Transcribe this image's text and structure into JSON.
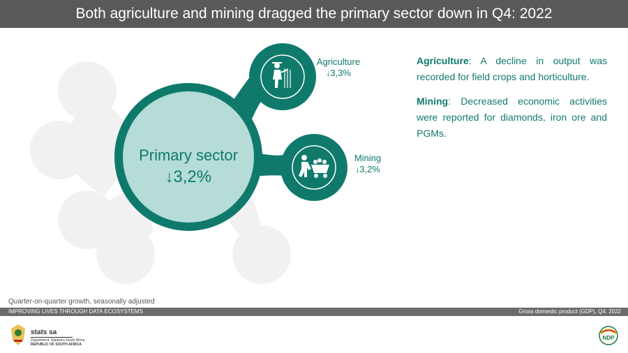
{
  "header": {
    "title": "Both agriculture and mining dragged the primary sector down in Q4: 2022"
  },
  "diagram": {
    "primary": {
      "label": "Primary sector",
      "arrow": "↓",
      "value": "3,2%"
    },
    "agriculture": {
      "label": "Agriculture",
      "arrow": "↓",
      "value": "3,3%",
      "icon": "farmer-icon"
    },
    "mining": {
      "label": "Mining",
      "arrow": "↓",
      "value": "3,2%",
      "icon": "miner-icon"
    },
    "colors": {
      "accent": "#0f7a6c",
      "center_fill": "#b5dcd7",
      "ghost": "#f1f1f1"
    }
  },
  "notes": [
    {
      "heading": "Agriculture",
      "text": ": A decline in output was recorded for field crops and horticulture."
    },
    {
      "heading": "Mining",
      "text": ": Decreased economic activities were reported for diamonds, iron ore and PGMs."
    }
  ],
  "footnote": "Quarter-on-quarter growth, seasonally adjusted",
  "footer": {
    "tagline": "IMPROVING LIVES THROUGH DATA ECOSYSTEMS",
    "source": "Gross domestic product (GDP), Q4: 2022"
  },
  "brand": {
    "name": "stats sa",
    "department": "Department: Statistics South Africa",
    "republic": "REPUBLIC OF SOUTH AFRICA",
    "ndp_logo": "NDP"
  }
}
